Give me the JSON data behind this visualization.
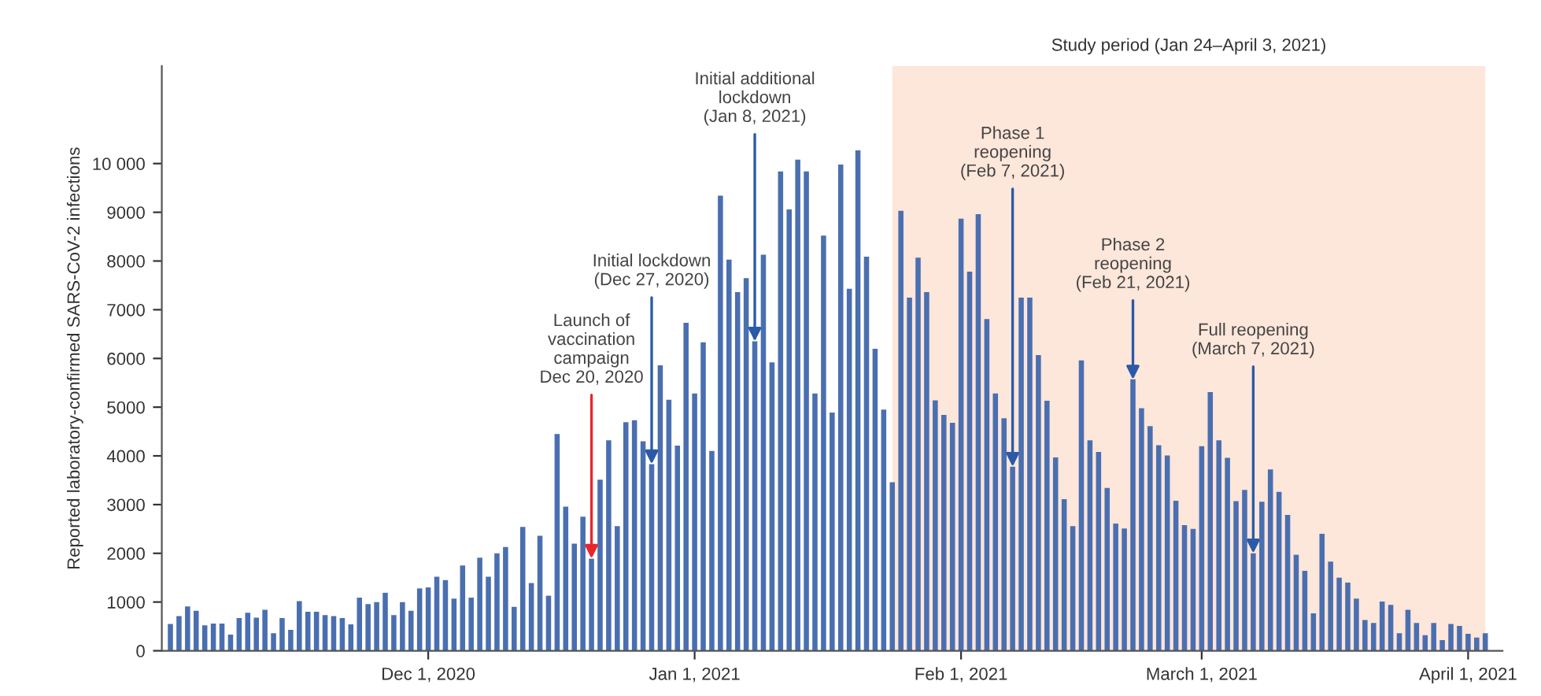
{
  "chart_data": {
    "type": "bar",
    "ylabel": "Reported laboratory-confirmed SARS-CoV-2 infections",
    "x": [
      "2020-11-01",
      "2020-11-02",
      "2020-11-03",
      "2020-11-04",
      "2020-11-05",
      "2020-11-06",
      "2020-11-07",
      "2020-11-08",
      "2020-11-09",
      "2020-11-10",
      "2020-11-11",
      "2020-11-12",
      "2020-11-13",
      "2020-11-14",
      "2020-11-15",
      "2020-11-16",
      "2020-11-17",
      "2020-11-18",
      "2020-11-19",
      "2020-11-20",
      "2020-11-21",
      "2020-11-22",
      "2020-11-23",
      "2020-11-24",
      "2020-11-25",
      "2020-11-26",
      "2020-11-27",
      "2020-11-28",
      "2020-11-29",
      "2020-11-30",
      "2020-12-01",
      "2020-12-02",
      "2020-12-03",
      "2020-12-04",
      "2020-12-05",
      "2020-12-06",
      "2020-12-07",
      "2020-12-08",
      "2020-12-09",
      "2020-12-10",
      "2020-12-11",
      "2020-12-12",
      "2020-12-13",
      "2020-12-14",
      "2020-12-15",
      "2020-12-16",
      "2020-12-17",
      "2020-12-18",
      "2020-12-19",
      "2020-12-20",
      "2020-12-21",
      "2020-12-22",
      "2020-12-23",
      "2020-12-24",
      "2020-12-25",
      "2020-12-26",
      "2020-12-27",
      "2020-12-28",
      "2020-12-29",
      "2020-12-30",
      "2020-12-31",
      "2021-01-01",
      "2021-01-02",
      "2021-01-03",
      "2021-01-04",
      "2021-01-05",
      "2021-01-06",
      "2021-01-07",
      "2021-01-08",
      "2021-01-09",
      "2021-01-10",
      "2021-01-11",
      "2021-01-12",
      "2021-01-13",
      "2021-01-14",
      "2021-01-15",
      "2021-01-16",
      "2021-01-17",
      "2021-01-18",
      "2021-01-19",
      "2021-01-20",
      "2021-01-21",
      "2021-01-22",
      "2021-01-23",
      "2021-01-24",
      "2021-01-25",
      "2021-01-26",
      "2021-01-27",
      "2021-01-28",
      "2021-01-29",
      "2021-01-30",
      "2021-01-31",
      "2021-02-01",
      "2021-02-02",
      "2021-02-03",
      "2021-02-04",
      "2021-02-05",
      "2021-02-06",
      "2021-02-07",
      "2021-02-08",
      "2021-02-09",
      "2021-02-10",
      "2021-02-11",
      "2021-02-12",
      "2021-02-13",
      "2021-02-14",
      "2021-02-15",
      "2021-02-16",
      "2021-02-17",
      "2021-02-18",
      "2021-02-19",
      "2021-02-20",
      "2021-02-21",
      "2021-02-22",
      "2021-02-23",
      "2021-02-24",
      "2021-02-25",
      "2021-02-26",
      "2021-02-27",
      "2021-02-28",
      "2021-03-01",
      "2021-03-02",
      "2021-03-03",
      "2021-03-04",
      "2021-03-05",
      "2021-03-06",
      "2021-03-07",
      "2021-03-08",
      "2021-03-09",
      "2021-03-10",
      "2021-03-11",
      "2021-03-12",
      "2021-03-13",
      "2021-03-14",
      "2021-03-15",
      "2021-03-16",
      "2021-03-17",
      "2021-03-18",
      "2021-03-19",
      "2021-03-20",
      "2021-03-21",
      "2021-03-22",
      "2021-03-23",
      "2021-03-24",
      "2021-03-25",
      "2021-03-26",
      "2021-03-27",
      "2021-03-28",
      "2021-03-29",
      "2021-03-30",
      "2021-03-31",
      "2021-04-01",
      "2021-04-02",
      "2021-04-03"
    ],
    "series": [
      {
        "color": "#4a6fb0",
        "values": [
          550,
          710,
          910,
          820,
          520,
          560,
          560,
          330,
          670,
          780,
          680,
          840,
          360,
          670,
          430,
          1020,
          800,
          800,
          730,
          710,
          670,
          540,
          1090,
          960,
          1000,
          1190,
          730,
          1000,
          820,
          1280,
          1300,
          1520,
          1450,
          1070,
          1750,
          1090,
          1910,
          1520,
          2000,
          2130,
          900,
          2540,
          1390,
          2360,
          1130,
          4450,
          2960,
          2200,
          2750,
          1890,
          3510,
          4320,
          2560,
          4690,
          4730,
          4300,
          3830,
          5860,
          5150,
          4210,
          6730,
          5280,
          6330,
          4100,
          9340,
          8030,
          7360,
          7650,
          6350,
          8130,
          5920,
          9840,
          9060,
          10080,
          9840,
          5280,
          8520,
          4890,
          9980,
          7430,
          10270,
          8090,
          6200,
          4950,
          3460,
          9030,
          7250,
          8070,
          7360,
          5140,
          4840,
          4680,
          8870,
          7780,
          8960,
          6810,
          5280,
          4770,
          3780,
          7250,
          7250,
          6070,
          5130,
          3970,
          3110,
          2560,
          5960,
          4320,
          4080,
          3340,
          2610,
          2510,
          5570,
          4980,
          4610,
          4220,
          4010,
          3080,
          2580,
          2500,
          4200,
          5310,
          4320,
          3960,
          3070,
          3300,
          2000,
          3060,
          3720,
          3260,
          2790,
          1970,
          1640,
          770,
          2400,
          1830,
          1500,
          1400,
          1070,
          630,
          570,
          1010,
          940,
          360,
          840,
          570,
          320,
          570,
          220,
          550,
          510,
          350,
          270,
          360
        ]
      }
    ],
    "xlim": [
      "2020-10-31",
      "2021-04-05"
    ],
    "xticks": [
      {
        "value": "2020-12-01",
        "label": "Dec 1, 2020"
      },
      {
        "value": "2021-01-01",
        "label": "Jan 1, 2021"
      },
      {
        "value": "2021-02-01",
        "label": "Feb 1, 2021"
      },
      {
        "value": "2021-03-01",
        "label": "March 1, 2021"
      },
      {
        "value": "2021-04-01",
        "label": "April 1, 2021"
      }
    ],
    "ylim": [
      0,
      12000
    ],
    "yticks": [
      0,
      1000,
      2000,
      3000,
      4000,
      5000,
      6000,
      7000,
      8000,
      9000,
      {
        "value": 10000,
        "label": "10 000"
      }
    ],
    "grid": false,
    "legend": false,
    "bands": [
      {
        "axis": "x",
        "from": "2021-01-24",
        "to": "2021-04-03",
        "label": "Study period (Jan 24–April 3, 2021)",
        "color": "#fde6da"
      }
    ],
    "annotations": [
      {
        "text": "Launch of\nvaccination\ncampaign\nDec 20, 2020",
        "x": "2020-12-20",
        "y": 1890
      },
      {
        "text": "Initial lockdown\n(Dec 27, 2020)",
        "x": "2020-12-27",
        "y": 3830
      },
      {
        "text": "Initial additional\nlockdown\n(Jan 8, 2021)",
        "x": "2021-01-08",
        "y": 6350
      },
      {
        "text": "Phase 1\nreopening\n(Feb 7, 2021)",
        "x": "2021-02-07",
        "y": 3780
      },
      {
        "text": "Phase 2\nreopening\n(Feb 21, 2021)",
        "x": "2021-02-21",
        "y": 5570
      },
      {
        "text": "Full reopening\n(March 7, 2021)",
        "x": "2021-03-07",
        "y": 2000
      }
    ]
  }
}
